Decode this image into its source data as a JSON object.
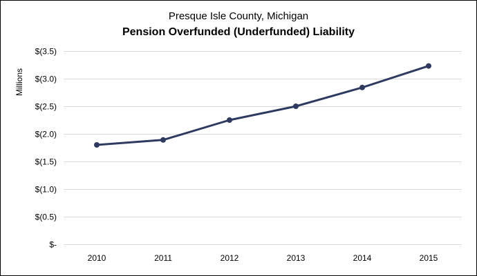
{
  "chart_data": {
    "type": "line",
    "title": "Pension Overfunded (Underfunded) Liability",
    "subtitle": "Presque Isle County, Michigan",
    "xlabel": "",
    "ylabel": "Millions",
    "categories": [
      "2010",
      "2011",
      "2012",
      "2013",
      "2014",
      "2015"
    ],
    "series": [
      {
        "name": "Pension Overfunded (Underfunded) Liability",
        "values": [
          1.8,
          1.89,
          2.25,
          2.5,
          2.84,
          3.23
        ],
        "color": "#2e3a5f"
      }
    ],
    "ylim": [
      0,
      3.5
    ],
    "yticks": [
      {
        "value": 0,
        "label": "$-"
      },
      {
        "value": 0.5,
        "label": "$(0.5)"
      },
      {
        "value": 1.0,
        "label": "$(1.0)"
      },
      {
        "value": 1.5,
        "label": "$(1.5)"
      },
      {
        "value": 2.0,
        "label": "$(2.0)"
      },
      {
        "value": 2.5,
        "label": "$(2.5)"
      },
      {
        "value": 3.0,
        "label": "$(3.0)"
      },
      {
        "value": 3.5,
        "label": "$(3.5)"
      }
    ],
    "grid": true,
    "legend": "none"
  }
}
